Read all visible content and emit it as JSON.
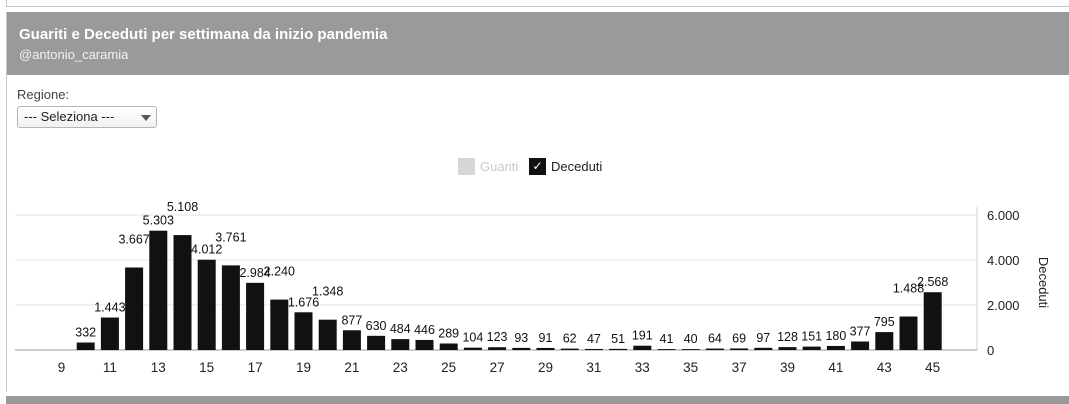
{
  "header": {
    "title": "Guariti e Deceduti per settimana da inizio pandemia",
    "subtitle": "@antonio_caramia"
  },
  "filter": {
    "label": "Regione:",
    "selected": "--- Seleziona ---"
  },
  "legend": {
    "items": [
      {
        "label": "Guariti",
        "checked": false,
        "color": "#d6d6d6"
      },
      {
        "label": "Deceduti",
        "checked": true,
        "color": "#111111"
      }
    ]
  },
  "chart_data": {
    "type": "bar",
    "title": "Guariti e Deceduti per settimana da inizio pandemia",
    "ylabel": "Deceduti",
    "xlabel": "",
    "y_axis_side": "right",
    "ylim": [
      0,
      6000
    ],
    "y_ticks": [
      0,
      2000,
      4000,
      6000
    ],
    "y_tick_labels": [
      "0",
      "2.000",
      "4.000",
      "6.000"
    ],
    "x_tick_labels": [
      "9",
      "11",
      "13",
      "15",
      "17",
      "19",
      "21",
      "23",
      "25",
      "27",
      "29",
      "31",
      "33",
      "35",
      "37",
      "39",
      "41",
      "43",
      "45"
    ],
    "grid": true,
    "legend_position": "top-center",
    "bar_color": "#111111",
    "categories": [
      9,
      10,
      11,
      12,
      13,
      14,
      15,
      16,
      17,
      18,
      19,
      20,
      21,
      22,
      23,
      24,
      25,
      26,
      27,
      28,
      29,
      30,
      31,
      32,
      33,
      34,
      35,
      36,
      37,
      38,
      39,
      40,
      41,
      42,
      43,
      44,
      45
    ],
    "series": [
      {
        "name": "Deceduti",
        "values": [
          0,
          332,
          1443,
          3667,
          5303,
          5108,
          4012,
          3761,
          2984,
          2240,
          1676,
          1348,
          877,
          630,
          484,
          446,
          289,
          104,
          123,
          93,
          91,
          62,
          47,
          51,
          191,
          41,
          40,
          64,
          69,
          97,
          128,
          151,
          180,
          377,
          795,
          1488,
          2568
        ],
        "labels": [
          "",
          "332",
          "1.443",
          "3.667",
          "5.303",
          "5.108",
          "4.012",
          "3.761",
          "2.984",
          "2.240",
          "1.676",
          "1.348",
          "877",
          "630",
          "484",
          "446",
          "289",
          "104",
          "123",
          "93",
          "91",
          "62",
          "47",
          "51",
          "191",
          "41",
          "40",
          "64",
          "69",
          "97",
          "128",
          "151",
          "180",
          "377",
          "795",
          "1.488",
          "2.568"
        ]
      }
    ]
  }
}
